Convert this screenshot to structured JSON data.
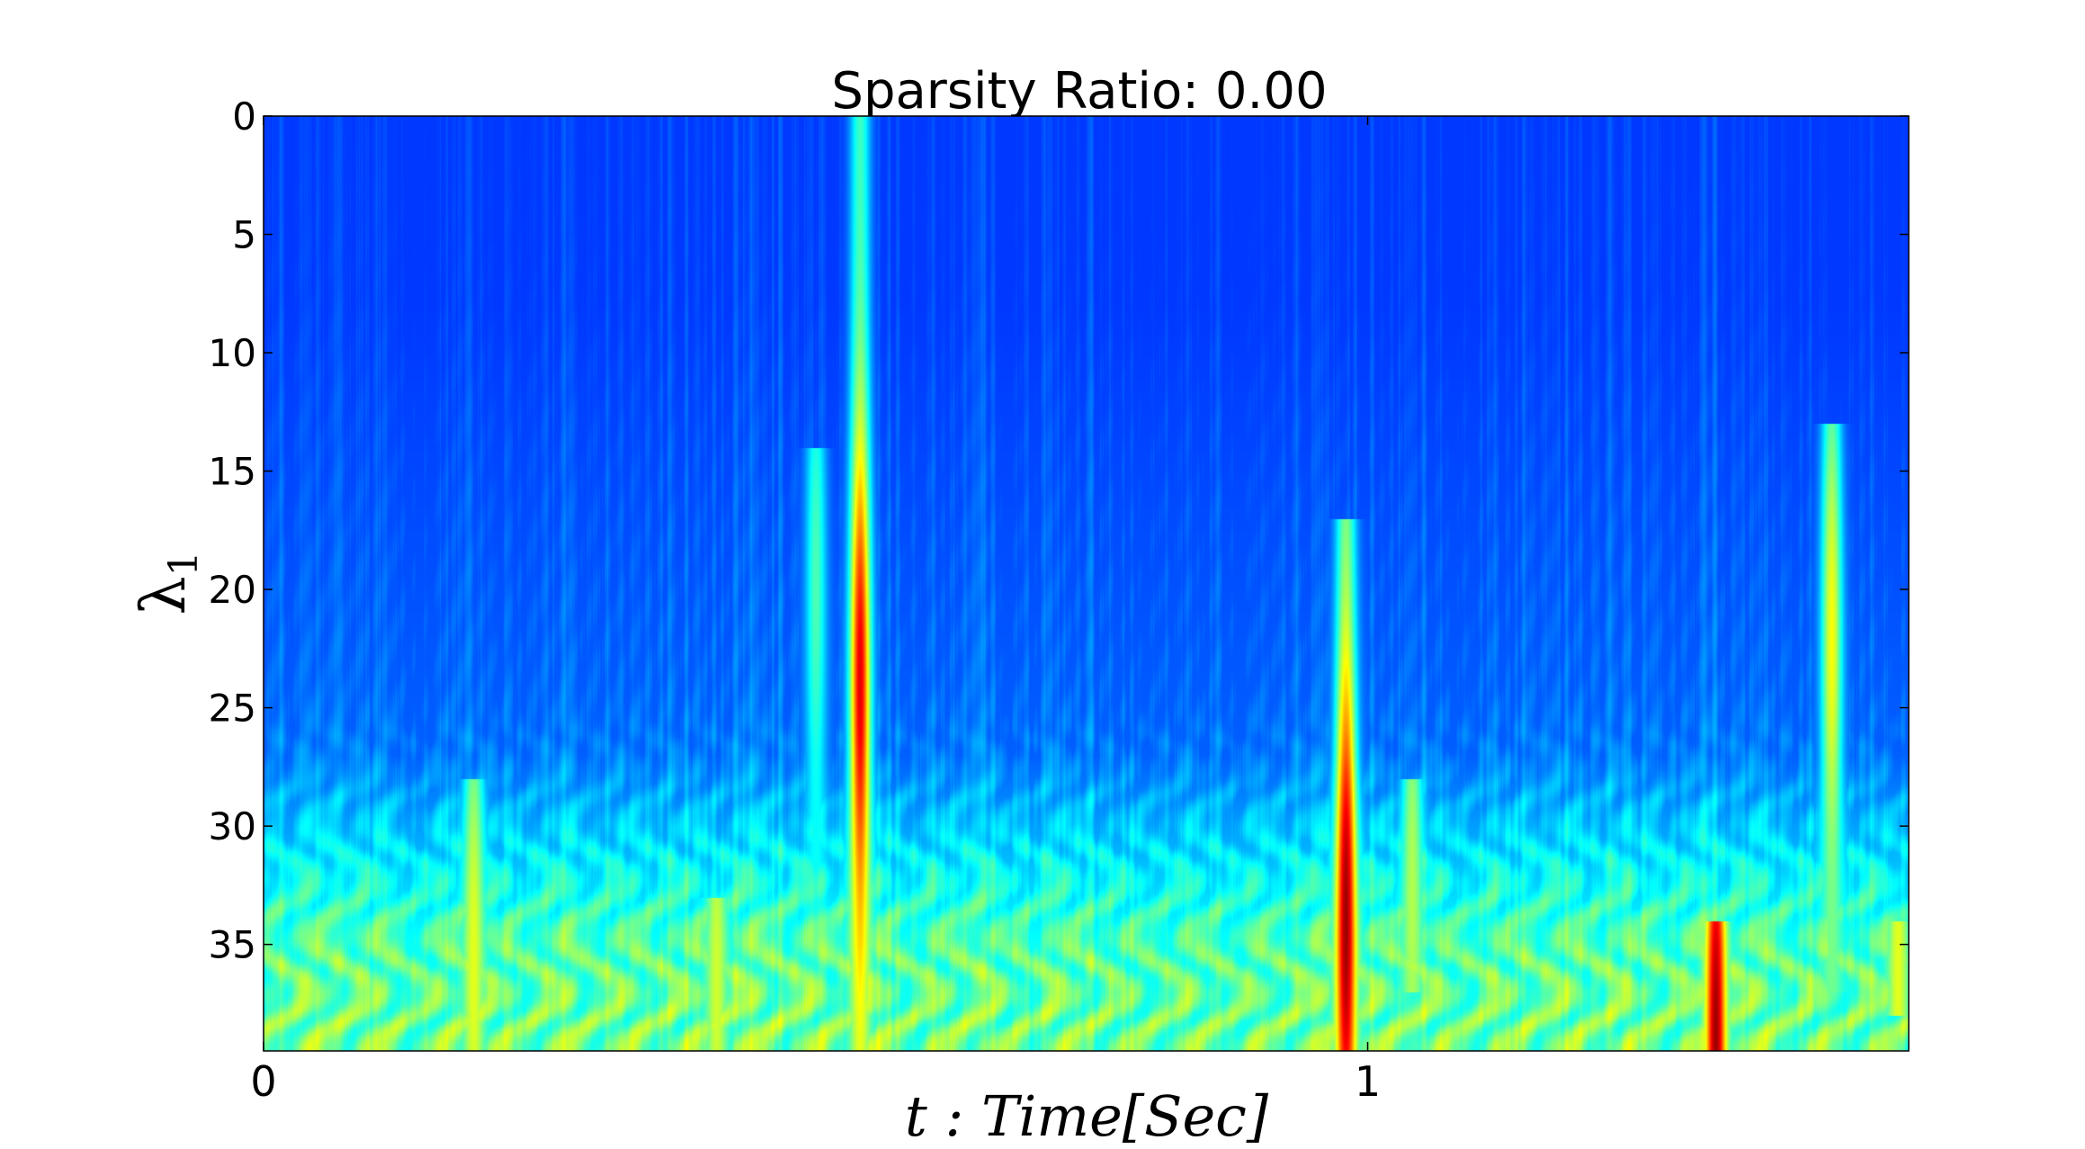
{
  "chart_data": {
    "type": "heatmap",
    "title": "Sparsity Ratio: 0.00",
    "xlabel": "t : Time[Sec]",
    "ylabel": {
      "symbol": "λ",
      "subscript": "1"
    },
    "x_ticks": [
      "0",
      "1"
    ],
    "x_tick_values": [
      0,
      1
    ],
    "xlim": [
      0,
      1.49
    ],
    "y_ticks": [
      "0",
      "5",
      "10",
      "15",
      "20",
      "25",
      "30",
      "35"
    ],
    "y_tick_values": [
      0,
      5,
      10,
      15,
      20,
      25,
      30,
      35
    ],
    "ylim": [
      0,
      39.5
    ],
    "y_inverted": true,
    "colormap": "jet",
    "colorbar": false,
    "grid": false,
    "background_level": 0.18,
    "high_frequency_band_level": 0.45,
    "high_frequency_band_start": 27,
    "hotspots": [
      {
        "t": 0.54,
        "lambda_range": [
          0,
          39.5
        ],
        "peak_lambda": 24,
        "level": 0.9
      },
      {
        "t": 0.98,
        "lambda_range": [
          17,
          39.5
        ],
        "peak_lambda": 34,
        "level": 0.97
      },
      {
        "t": 1.315,
        "lambda_range": [
          34,
          39.5
        ],
        "peak_lambda": 39,
        "level": 0.97
      },
      {
        "t": 1.42,
        "lambda_range": [
          13,
          37
        ],
        "peak_lambda": 22,
        "level": 0.62
      },
      {
        "t": 0.19,
        "lambda_range": [
          28,
          39.5
        ],
        "peak_lambda": 36,
        "level": 0.6
      },
      {
        "t": 0.41,
        "lambda_range": [
          33,
          39.5
        ],
        "peak_lambda": 37,
        "level": 0.58
      },
      {
        "t": 0.5,
        "lambda_range": [
          14,
          36
        ],
        "peak_lambda": 20,
        "level": 0.45
      },
      {
        "t": 1.04,
        "lambda_range": [
          28,
          37
        ],
        "peak_lambda": 33,
        "level": 0.55
      },
      {
        "t": 1.48,
        "lambda_range": [
          34,
          38
        ],
        "peak_lambda": 36,
        "level": 0.6
      }
    ]
  }
}
